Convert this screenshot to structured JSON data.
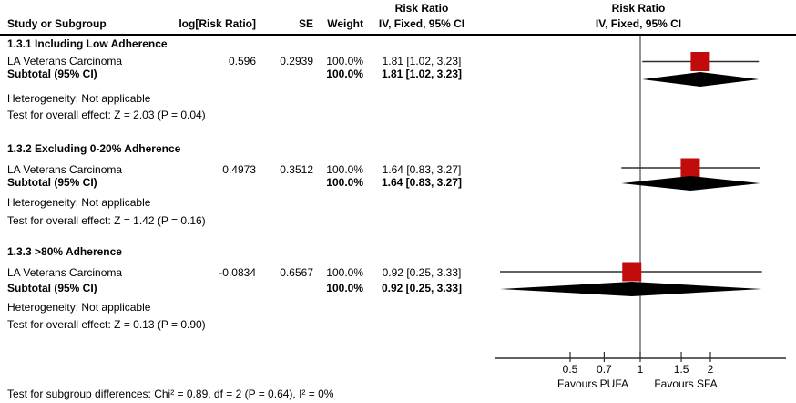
{
  "chart_data": {
    "type": "forest",
    "x_scale": "log",
    "effect_measure": "Risk Ratio",
    "header": {
      "effect_top": "Risk Ratio",
      "study": "Study or Subgroup",
      "log_rr": "log[Risk Ratio]",
      "se": "SE",
      "weight": "Weight",
      "ci": "IV, Fixed, 95% CI",
      "plot_line1": "Risk Ratio",
      "plot_line2": "IV, Fixed, 95% CI"
    },
    "axis": {
      "ticks": [
        0.5,
        0.7,
        1,
        1.5,
        2
      ],
      "range": [
        0.24,
        4.2
      ],
      "null_value": 1,
      "favours_left": "Favours PUFA",
      "favours_right": "Favours SFA"
    },
    "subgroups": [
      {
        "label": "1.3.1 Including Low Adherence",
        "studies": [
          {
            "name": "LA Veterans Carcinoma",
            "log_rr": 0.596,
            "se": 0.2939,
            "weight": "100.0%",
            "ci_text": "1.81 [1.02, 3.23]",
            "rr": 1.81,
            "ci_low": 1.02,
            "ci_high": 3.23
          }
        ],
        "subtotal": {
          "label": "Subtotal (95% CI)",
          "weight": "100.0%",
          "ci_text": "1.81 [1.02, 3.23]",
          "rr": 1.81,
          "ci_low": 1.02,
          "ci_high": 3.23
        },
        "heterogeneity": "Heterogeneity: Not applicable",
        "overall_effect": "Test for overall effect: Z = 2.03 (P = 0.04)"
      },
      {
        "label": "1.3.2 Excluding 0-20% Adherence",
        "studies": [
          {
            "name": "LA Veterans Carcinoma",
            "log_rr": 0.4973,
            "se": 0.3512,
            "weight": "100.0%",
            "ci_text": "1.64 [0.83, 3.27]",
            "rr": 1.64,
            "ci_low": 0.83,
            "ci_high": 3.27
          }
        ],
        "subtotal": {
          "label": "Subtotal (95% CI)",
          "weight": "100.0%",
          "ci_text": "1.64 [0.83, 3.27]",
          "rr": 1.64,
          "ci_low": 0.83,
          "ci_high": 3.27
        },
        "heterogeneity": "Heterogeneity: Not applicable",
        "overall_effect": "Test for overall effect: Z = 1.42 (P = 0.16)"
      },
      {
        "label": "1.3.3 >80% Adherence",
        "studies": [
          {
            "name": "LA Veterans Carcinoma",
            "log_rr": -0.0834,
            "se": 0.6567,
            "weight": "100.0%",
            "ci_text": "0.92 [0.25, 3.33]",
            "rr": 0.92,
            "ci_low": 0.25,
            "ci_high": 3.33
          }
        ],
        "subtotal": {
          "label": "Subtotal (95% CI)",
          "weight": "100.0%",
          "ci_text": "0.92 [0.25, 3.33]",
          "rr": 0.92,
          "ci_low": 0.25,
          "ci_high": 3.33
        },
        "heterogeneity": "Heterogeneity: Not applicable",
        "overall_effect": "Test for overall effect: Z = 0.13 (P = 0.90)"
      }
    ],
    "footer": "Test for subgroup differences: Chi² = 0.89, df = 2 (P = 0.64), I² = 0%"
  },
  "colors": {
    "square": "#C20C0C",
    "diamond": "#000000",
    "ci_line": "#2e2e2e",
    "null_line": "#4d4d4d",
    "axis_line": "#2e2e2e",
    "separator": "#000000"
  }
}
